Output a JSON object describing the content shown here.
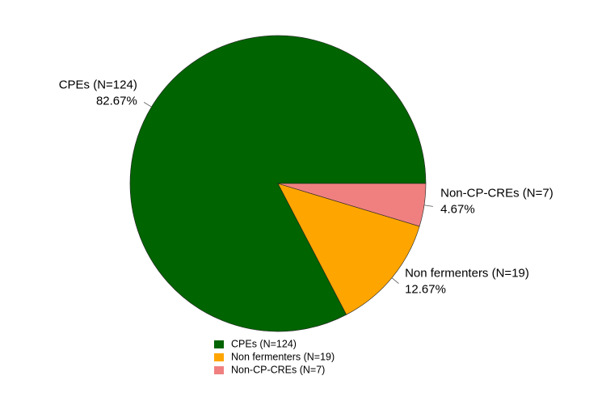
{
  "chart_data": {
    "type": "pie",
    "categories": [
      "CPEs (N=124)",
      "Non fermenters (N=19)",
      "Non-CP-CREs (N=7)"
    ],
    "values": [
      82.67,
      12.67,
      4.67
    ],
    "value_labels": [
      "82.67%",
      "12.67%",
      "4.67%"
    ],
    "colors": [
      "#006400",
      "#ffa500",
      "#f08080"
    ]
  }
}
